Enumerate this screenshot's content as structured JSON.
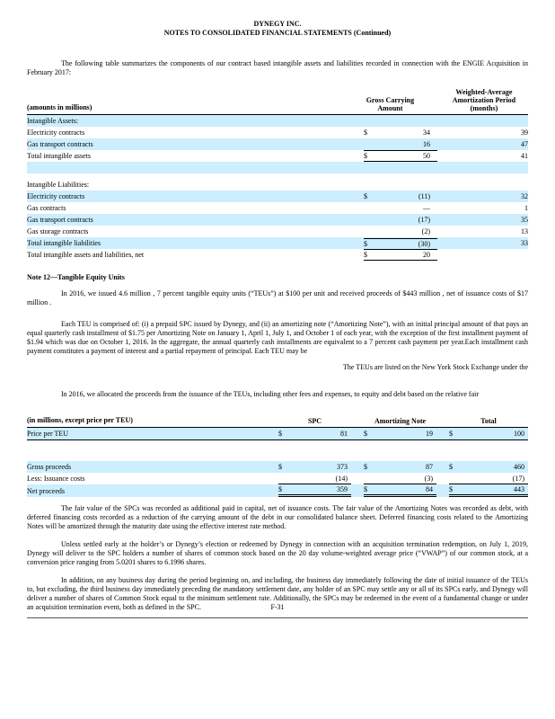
{
  "highlight_color": "#cceeff",
  "header": {
    "company": "DYNEGY INC.",
    "subtitle": "NOTES TO CONSOLIDATED FINANCIAL STATEMENTS (Continued)"
  },
  "intro_paragraph": "The following table summarizes the components of our contract based intangible assets and liabilities recorded in connection with the ENGIE Acquisition in February 2017:",
  "intangibles_table": {
    "headers": {
      "label": "(amounts in millions)",
      "amount": "Gross Carrying Amount",
      "months_line1": "Weighted-Average",
      "months_line2": "Amortization Period",
      "months_line3": "(months)"
    },
    "rows": [
      {
        "label": "Intangible Assets:",
        "dollar": "",
        "amount": "",
        "months": ""
      },
      {
        "label": "Electricity contracts",
        "dollar": "$",
        "amount": "34",
        "months": "39"
      },
      {
        "label": "Gas transport contracts",
        "dollar": "",
        "amount": "16",
        "months": "47"
      },
      {
        "label": "Total intangible assets",
        "dollar": "$",
        "amount": "50",
        "months": "41"
      },
      {
        "label": "",
        "dollar": "",
        "amount": "",
        "months": ""
      },
      {
        "label": "Intangible Liabilities:",
        "dollar": "",
        "amount": "",
        "months": ""
      },
      {
        "label": "Electricity contracts",
        "dollar": "$",
        "amount": "(11)",
        "months": "32"
      },
      {
        "label": "Gas contracts",
        "dollar": "",
        "amount": "—",
        "months": "1"
      },
      {
        "label": "Gas transport contracts",
        "dollar": "",
        "amount": "(17)",
        "months": "35"
      },
      {
        "label": "Gas storage contracts",
        "dollar": "",
        "amount": "(2)",
        "months": "13"
      },
      {
        "label": "Total intangible liabilities",
        "dollar": "$",
        "amount": "(30)",
        "months": "33"
      },
      {
        "label": "Total intangible assets and liabilities, net",
        "dollar": "$",
        "amount": "20",
        "months": ""
      }
    ]
  },
  "note12": {
    "heading": "Note 12—Tangible Equity Units",
    "p_issued": "In 2016, we issued 4.6 million , 7 percent tangible equity units (“TEUs”) at   $100 per unit and received proceeds of   $443 million , net of issuance costs of  $17 million .",
    "p_comprised": "Each TEU is comprised of: (i) a prepaid SPC issued by Dynegy, and (ii) an amortizing note (“Amortizing Note”), with an initial principal amount of that pays an equal quarterly cash installment of    $1.75 per Amortizing Note on January 1, April 1, July 1, and October 1 of each year, with the exception of the first installment payment of   $1.94 which was due on October 1, 2016.  In the aggregate, the annual quarterly cash installments are equivalent to a 7 percent cash payment per year.Each installment cash payment constitutes a payment of interest and a partial repayment of principal.   Each TEU may be",
    "p_listed": "The TEUs are listed on the New York Stock Exchange under the",
    "p_allocated": "In 2016, we allocated the proceeds from the issuance of the TEUs, including other fees and expenses, to equity and debt based on the relative fair"
  },
  "proceeds_table": {
    "headers": {
      "label": "(in millions, except price per TEU)",
      "col1": "SPC",
      "col2": "Amortizing Note",
      "col3": "Total"
    },
    "rows": [
      {
        "label": "Price per TEU",
        "d1": "$",
        "v1": "81",
        "d2": "$",
        "v2": "19",
        "d3": "$",
        "v3": "100"
      },
      {
        "label": "",
        "d1": "",
        "v1": "",
        "d2": "",
        "v2": "",
        "d3": "",
        "v3": ""
      },
      {
        "label": "Gross proceeds",
        "d1": "$",
        "v1": "373",
        "d2": "$",
        "v2": "87",
        "d3": "$",
        "v3": "460"
      },
      {
        "label": "Less: Issuance costs",
        "d1": "",
        "v1": "(14)",
        "d2": "",
        "v2": "(3)",
        "d3": "",
        "v3": "(17)"
      },
      {
        "label": "Net proceeds",
        "d1": "$",
        "v1": "359",
        "d2": "$",
        "v2": "84",
        "d3": "$",
        "v3": "443"
      }
    ]
  },
  "closing": {
    "p_fair_value": "The fair value of the SPCs was recorded as additional paid in capital, net of issuance costs.     The fair value of the Amortizing Notes was recorded as debt, with deferred financing costs recorded as a reduction of the carrying amount of the debt in our consolidated balance sheet.      Deferred financing costs related to the Amortizing Notes will be amortized through the maturity date using the effective interest rate method.",
    "p_settlement": "Unless settled early at the holder’s or Dynegy’s election or redeemed by Dynegy in connection with an acquisition termination redemption, on July 1, 2019, Dynegy will deliver to the SPC holders a number of shares of common stock based on the    20 day volume-weighted average price (“VWAP”) of our common stock, at a conversion price ranging from   5.0201 shares to  6.1996  shares.",
    "p_early_settlement": "In addition, on any business day during the period beginning on, and including, the business day immediately following the date of initial issuance of the TEUs to, but excluding, the third business day immediately preceding the mandatory settlement date, any holder of an SPC may settle any or all of its SPCs early, and Dynegy will deliver a number of shares of Common Stock equal to the minimum settlement rate.  Additionally, the SPCs may be redeemed in the event of a fundamental change or under an acquisition termination event, both as defined in the SPC."
  },
  "footer": {
    "page_number": "F-31"
  }
}
